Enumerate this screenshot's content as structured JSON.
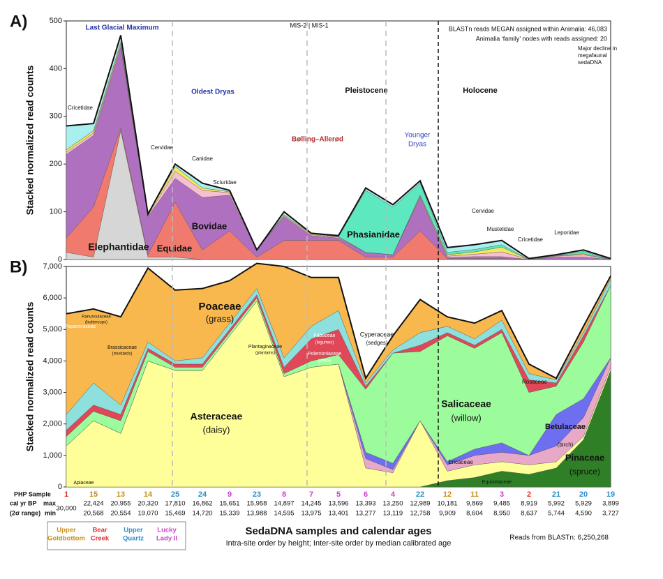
{
  "chart_data": [
    {
      "type": "stacked_area",
      "panel": "A)",
      "y_label": "Stacked normalized read counts",
      "ylim": [
        0,
        500
      ],
      "yticks": [
        0,
        100,
        200,
        300,
        400,
        500
      ],
      "series": [
        {
          "name": "Elephantidae",
          "color": "#d6d6d6",
          "values": [
            15,
            5,
            270,
            5,
            5,
            0,
            0,
            0,
            0,
            0,
            0,
            0,
            0,
            0,
            0,
            0,
            0,
            0,
            0,
            0,
            0
          ]
        },
        {
          "name": "Equidae",
          "color": "#f07a6e",
          "values": [
            30,
            105,
            5,
            5,
            115,
            20,
            60,
            5,
            40,
            40,
            40,
            5,
            5,
            60,
            2,
            2,
            2,
            0,
            0,
            0,
            0
          ]
        },
        {
          "name": "Bovidae",
          "color": "#b070c0",
          "values": [
            175,
            150,
            170,
            80,
            50,
            110,
            75,
            15,
            50,
            10,
            5,
            10,
            5,
            70,
            2,
            4,
            4,
            0,
            5,
            5,
            0
          ]
        },
        {
          "name": "Cervidae",
          "color": "#f6c0d0",
          "values": [
            5,
            5,
            5,
            2,
            15,
            15,
            5,
            0,
            2,
            2,
            2,
            0,
            0,
            3,
            3,
            5,
            10,
            0,
            2,
            5,
            0
          ]
        },
        {
          "name": "Sciuridae",
          "color": "#f4e860",
          "values": [
            5,
            5,
            5,
            2,
            10,
            5,
            2,
            0,
            2,
            2,
            1,
            0,
            0,
            2,
            3,
            5,
            10,
            0,
            1,
            2,
            0
          ]
        },
        {
          "name": "Phasianidae",
          "color": "#5ee8c0",
          "values": [
            0,
            0,
            0,
            0,
            0,
            0,
            0,
            0,
            0,
            0,
            0,
            130,
            100,
            25,
            5,
            5,
            5,
            0,
            0,
            5,
            0
          ]
        },
        {
          "name": "Cricetidae",
          "color": "#a8f0f0",
          "values": [
            50,
            15,
            15,
            1,
            5,
            10,
            3,
            0,
            6,
            1,
            2,
            5,
            5,
            5,
            10,
            10,
            9,
            2,
            2,
            3,
            2
          ]
        }
      ],
      "annotations": [
        "Last Glacial Maximum",
        "Oldest Dryas",
        "Pleistocene",
        "Holocene",
        "Bølling–Allerød",
        "Younger",
        "Dryas",
        "MIS-2 | MIS-1",
        "BLASTn reads MEGAN assigned within Animalia: 46,083",
        "Animalia ‘family’ nodes with reads assigned: 20",
        "Major decline in",
        "megafaunal",
        "sedaDNA",
        "Canidae",
        "Cervidae",
        "Mustelidae",
        "Cricetidae",
        "Leporidae"
      ]
    },
    {
      "type": "stacked_area",
      "panel": "B)",
      "y_label": "Stacked normalized read counts",
      "ylim": [
        0,
        7000
      ],
      "yticks": [
        0,
        {
          "value": 1000,
          "label": "1,000"
        },
        {
          "value": 2000,
          "label": "2,000"
        },
        {
          "value": 3000,
          "label": "3,000"
        },
        {
          "value": 4000,
          "label": "4,000"
        },
        {
          "value": 5000,
          "label": "5,000"
        },
        {
          "value": 6000,
          "label": "6,000"
        },
        {
          "value": 7000,
          "label": "7,000"
        }
      ],
      "series": [
        {
          "name": "Pinaceae",
          "common": "(spruce)",
          "color": "#2f7f26",
          "values": [
            0,
            0,
            0,
            0,
            0,
            0,
            0,
            0,
            0,
            0,
            0,
            0,
            0,
            0,
            200,
            300,
            500,
            400,
            600,
            1500,
            3700
          ]
        },
        {
          "name": "Asteraceae",
          "common": "(daisy)",
          "color": "#ffff99",
          "values": [
            1300,
            2100,
            1700,
            4000,
            3700,
            3700,
            4800,
            5900,
            3500,
            3800,
            3900,
            600,
            450,
            2100,
            300,
            400,
            300,
            300,
            200,
            100,
            100
          ]
        },
        {
          "name": "Ericaceae",
          "color": "#e8a8c8",
          "values": [
            0,
            0,
            0,
            0,
            0,
            0,
            0,
            0,
            0,
            0,
            0,
            300,
            100,
            0,
            200,
            300,
            300,
            300,
            500,
            600,
            300
          ]
        },
        {
          "name": "Betulaceae",
          "common": "(birch)",
          "color": "#6e6ef0",
          "values": [
            0,
            0,
            0,
            0,
            0,
            0,
            0,
            0,
            0,
            0,
            0,
            200,
            200,
            0,
            100,
            200,
            300,
            0,
            1000,
            600,
            0
          ]
        },
        {
          "name": "Salicaceae",
          "common": "(willow)",
          "color": "#9cfc9c",
          "values": [
            300,
            300,
            400,
            300,
            100,
            100,
            100,
            100,
            100,
            200,
            300,
            2000,
            3500,
            2200,
            4000,
            3200,
            3500,
            2000,
            900,
            1800,
            2300
          ]
        },
        {
          "name": "Rosaceae",
          "color": "#e04858",
          "values": [
            200,
            200,
            200,
            100,
            100,
            100,
            100,
            100,
            200,
            700,
            800,
            100,
            0,
            200,
            100,
            100,
            100,
            400,
            100,
            200,
            0
          ]
        },
        {
          "name": "Cyperaceae",
          "common": "(sedges)",
          "color": "#8ee0dc",
          "values": [
            500,
            700,
            300,
            200,
            100,
            200,
            200,
            200,
            300,
            400,
            600,
            100,
            100,
            400,
            200,
            200,
            300,
            200,
            100,
            100,
            200
          ]
        },
        {
          "name": "Poaceae",
          "common": "(grass)",
          "color": "#f8b84e",
          "values": [
            3200,
            2350,
            2800,
            2350,
            2250,
            2200,
            1350,
            800,
            2900,
            1550,
            1050,
            150,
            450,
            1050,
            300,
            500,
            300,
            300,
            50,
            200,
            100
          ]
        }
      ],
      "annotations": [
        "Ranunculaceae",
        "(buttercups)",
        "Papaveraceae",
        "Brassicaceae",
        "(mustards)",
        "Plantaginaceae",
        "(plantains)",
        "Fabaceae",
        "(legumes)",
        "Polemoniaceae",
        "(phlox)",
        "Apiaceae",
        "Equisetaceae"
      ]
    }
  ],
  "samples": {
    "row_label": "PHP Sample",
    "age_label": "cal yr BP",
    "range_label": "(2σ range)",
    "max_label": "max",
    "min_label": "min",
    "labels": [
      "1",
      "15",
      "13",
      "14",
      "25",
      "24",
      "9",
      "23",
      "8",
      "7",
      "5",
      "6",
      "4",
      "22",
      "12",
      "11",
      "3",
      "2",
      "21",
      "20",
      "19"
    ],
    "site": [
      1,
      0,
      0,
      0,
      2,
      2,
      3,
      2,
      3,
      3,
      3,
      3,
      3,
      2,
      0,
      0,
      3,
      1,
      2,
      2,
      2
    ],
    "max": [
      "30,000",
      "22,424",
      "20,955",
      "20,320",
      "17,810",
      "16,862",
      "15,651",
      "15,958",
      "14,897",
      "14,245",
      "13,596",
      "13,393",
      "13,250",
      "12,989",
      "10,181",
      "9,869",
      "9,485",
      "8,919",
      "5,992",
      "5,929",
      "3,899"
    ],
    "min": [
      null,
      "20,568",
      "20,554",
      "19,070",
      "15,469",
      "14,720",
      "15,339",
      "13,988",
      "14,595",
      "13,975",
      "13,401",
      "13,277",
      "13,119",
      "12,758",
      "9,909",
      "8,604",
      "8,950",
      "8,637",
      "5,744",
      "4,590",
      "3,727"
    ]
  },
  "sites": [
    {
      "name": "Upper Goldbottom",
      "color": "#c8901a"
    },
    {
      "name": "Bear Creek",
      "color": "#e03030"
    },
    {
      "name": "Upper Quartz",
      "color": "#2a8fc8"
    },
    {
      "name": "Lucky Lady II",
      "color": "#d040d0"
    }
  ],
  "footer": {
    "title": "SedaDNA samples and calendar ages",
    "subtitle": "Intra-site order by height; Inter-site order by median calibrated age",
    "reads": "Reads from BLASTn: 6,250,268"
  }
}
